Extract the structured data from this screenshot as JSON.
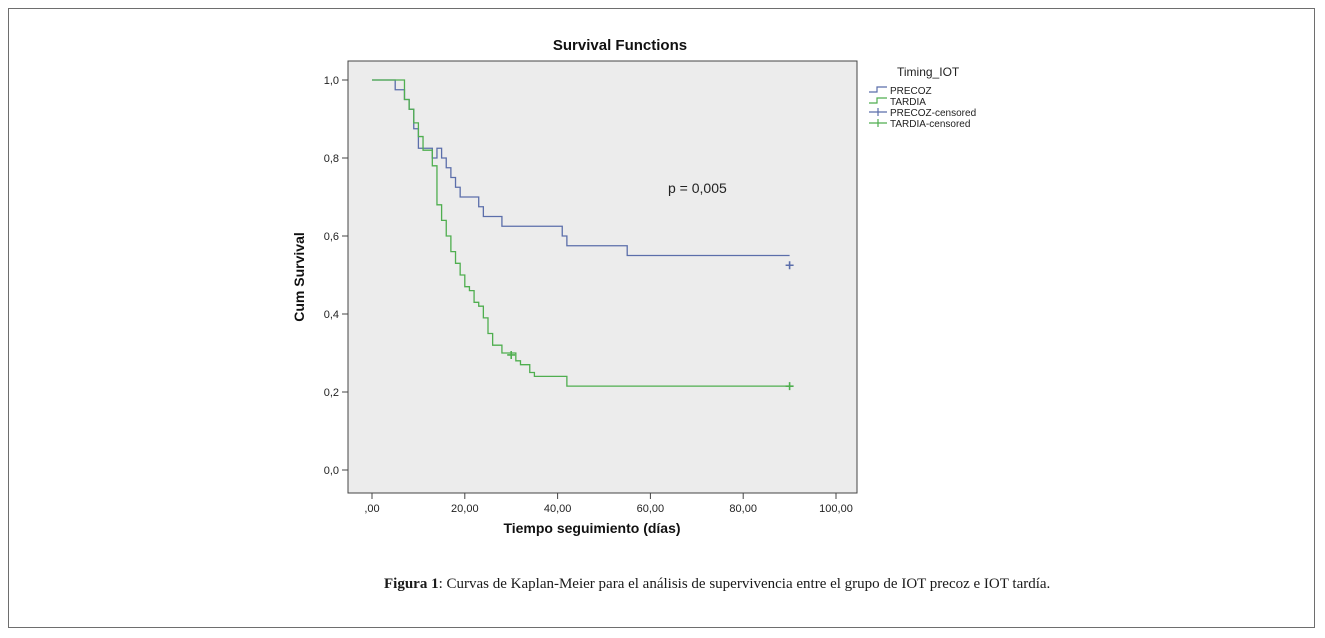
{
  "chart_data": {
    "type": "line",
    "subtype": "kaplan-meier-step",
    "title": "Survival Functions",
    "xlabel": "Tiempo seguimiento (días)",
    "ylabel": "Cum Survival",
    "xlim": [
      0,
      100
    ],
    "ylim": [
      0,
      1
    ],
    "x_ticks": [
      0,
      20,
      40,
      60,
      80,
      100
    ],
    "x_tick_labels": [
      ",00",
      "20,00",
      "40,00",
      "60,00",
      "80,00",
      "100,00"
    ],
    "y_ticks": [
      0,
      0.2,
      0.4,
      0.6,
      0.8,
      1.0
    ],
    "y_tick_labels": [
      "0,0",
      "0,2",
      "0,4",
      "0,6",
      "0,8",
      "1,0"
    ],
    "grid": false,
    "legend_title": "Timing_IOT",
    "legend_placement": "right",
    "legend": [
      "PRECOZ",
      "TARDIA",
      "PRECOZ-censored",
      "TARDIA-censored"
    ],
    "annotation": "p = 0,005",
    "series": [
      {
        "name": "PRECOZ",
        "color": "#5b6eaa",
        "steps": [
          [
            0,
            1.0
          ],
          [
            5,
            0.975
          ],
          [
            7,
            0.95
          ],
          [
            8,
            0.925
          ],
          [
            9,
            0.875
          ],
          [
            10,
            0.825
          ],
          [
            12,
            0.825
          ],
          [
            13,
            0.8
          ],
          [
            14,
            0.825
          ],
          [
            15,
            0.8
          ],
          [
            16,
            0.775
          ],
          [
            17,
            0.75
          ],
          [
            18,
            0.725
          ],
          [
            19,
            0.7
          ],
          [
            21,
            0.7
          ],
          [
            23,
            0.675
          ],
          [
            24,
            0.65
          ],
          [
            27,
            0.65
          ],
          [
            28,
            0.625
          ],
          [
            41,
            0.6
          ],
          [
            42,
            0.575
          ],
          [
            55,
            0.55
          ],
          [
            90,
            0.55
          ]
        ],
        "censored": [
          [
            90,
            0.525
          ]
        ]
      },
      {
        "name": "TARDIA",
        "color": "#4fae4f",
        "steps": [
          [
            0,
            1.0
          ],
          [
            7,
            0.95
          ],
          [
            8,
            0.925
          ],
          [
            9,
            0.89
          ],
          [
            10,
            0.855
          ],
          [
            11,
            0.82
          ],
          [
            13,
            0.78
          ],
          [
            14,
            0.68
          ],
          [
            15,
            0.64
          ],
          [
            16,
            0.6
          ],
          [
            17,
            0.56
          ],
          [
            18,
            0.53
          ],
          [
            19,
            0.5
          ],
          [
            20,
            0.47
          ],
          [
            21,
            0.46
          ],
          [
            22,
            0.43
          ],
          [
            23,
            0.42
          ],
          [
            24,
            0.39
          ],
          [
            25,
            0.35
          ],
          [
            26,
            0.32
          ],
          [
            28,
            0.3
          ],
          [
            31,
            0.28
          ],
          [
            32,
            0.27
          ],
          [
            34,
            0.25
          ],
          [
            35,
            0.24
          ],
          [
            42,
            0.215
          ],
          [
            90,
            0.215
          ]
        ],
        "censored": [
          [
            30,
            0.295
          ],
          [
            90,
            0.215
          ]
        ]
      }
    ]
  },
  "caption": {
    "label": "Figura 1",
    "text": ": Curvas de Kaplan-Meier para el análisis de supervivencia entre el grupo de IOT precoz e IOT tardía."
  }
}
